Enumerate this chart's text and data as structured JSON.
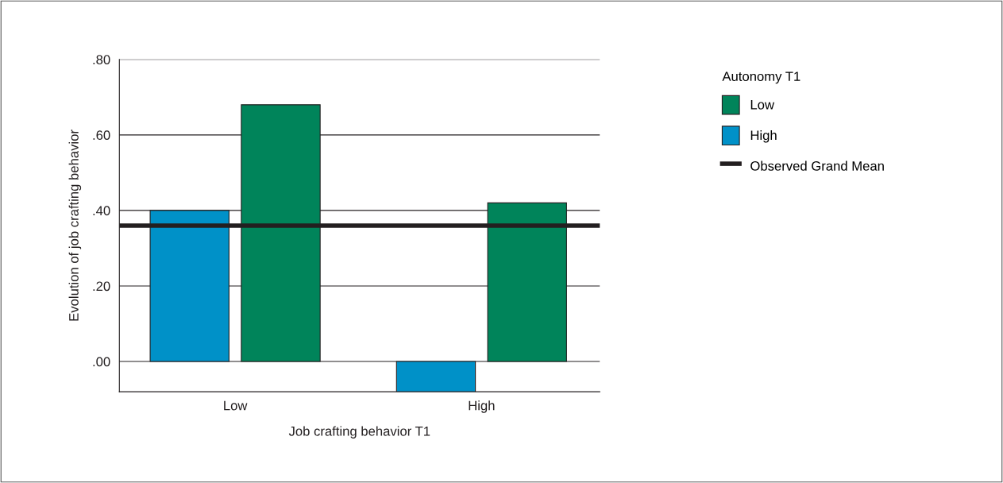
{
  "chart_data": {
    "type": "bar",
    "xlabel": "Job crafting behavior T1",
    "ylabel": "Evolution of job crafting behavior",
    "legend_title": "Autonomy T1",
    "categories": [
      "Low",
      "High"
    ],
    "series": [
      {
        "name": "High",
        "color": "#0091c8",
        "values": [
          0.4,
          -0.08
        ]
      },
      {
        "name": "Low",
        "color": "#00845a",
        "values": [
          0.68,
          0.42
        ]
      }
    ],
    "ylim": [
      -0.08,
      0.8
    ],
    "yticks": [
      {
        "value": 0,
        "label": ".00"
      },
      {
        "value": 0.2,
        "label": ".20"
      },
      {
        "value": 0.4,
        "label": ".40"
      },
      {
        "value": 0.6,
        "label": ".60"
      },
      {
        "value": 0.8,
        "label": ".80"
      }
    ],
    "ref_lines": [
      {
        "axis": "y",
        "value": 0.36,
        "label": "Observed Grand Mean",
        "color": "#231f20",
        "line_style": "solid"
      }
    ],
    "grid": "y",
    "legend": "top right"
  }
}
